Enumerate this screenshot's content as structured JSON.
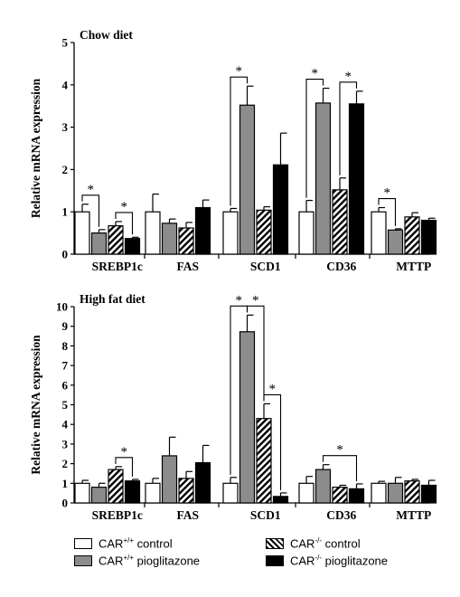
{
  "chart_data": [
    {
      "type": "bar",
      "title": "Chow diet",
      "ylabel": "Relative mRNA expression",
      "ylim": [
        0,
        5
      ],
      "yticks": [
        0,
        1,
        2,
        3,
        4,
        5
      ],
      "categories": [
        "SREBP1c",
        "FAS",
        "SCD1",
        "CD36",
        "MTTP"
      ],
      "series": [
        {
          "key": "car_pp_control",
          "values": [
            1.0,
            1.0,
            1.0,
            1.0,
            1.0
          ],
          "errors": [
            0.18,
            0.42,
            0.08,
            0.27,
            0.1
          ]
        },
        {
          "key": "car_pp_pio",
          "values": [
            0.5,
            0.73,
            3.52,
            3.57,
            0.57
          ],
          "errors": [
            0.08,
            0.1,
            0.45,
            0.35,
            0.03
          ]
        },
        {
          "key": "car_mm_control",
          "values": [
            0.67,
            0.62,
            1.04,
            1.52,
            0.88
          ],
          "errors": [
            0.1,
            0.13,
            0.08,
            0.28,
            0.1
          ]
        },
        {
          "key": "car_mm_pio",
          "values": [
            0.37,
            1.1,
            2.11,
            3.55,
            0.8
          ],
          "errors": [
            0.03,
            0.18,
            0.75,
            0.3,
            0.05
          ]
        }
      ],
      "significance": [
        {
          "category": 0,
          "from": 0,
          "to": 1,
          "label": "*"
        },
        {
          "category": 0,
          "from": 2,
          "to": 3,
          "label": "*"
        },
        {
          "category": 2,
          "from": 0,
          "to": 1,
          "label": "*"
        },
        {
          "category": 3,
          "from": 0,
          "to": 1,
          "label": "*"
        },
        {
          "category": 3,
          "from": 2,
          "to": 3,
          "label": "*"
        },
        {
          "category": 4,
          "from": 0,
          "to": 1,
          "label": "*"
        }
      ]
    },
    {
      "type": "bar",
      "title": "High fat diet",
      "ylabel": "Relative mRNA expression",
      "ylim": [
        0,
        10
      ],
      "yticks": [
        0,
        1,
        2,
        3,
        4,
        5,
        6,
        7,
        8,
        9,
        10
      ],
      "categories": [
        "SREBP1c",
        "FAS",
        "SCD1",
        "CD36",
        "MTTP"
      ],
      "series": [
        {
          "key": "car_pp_control",
          "values": [
            1.0,
            1.0,
            1.0,
            1.0,
            1.0
          ],
          "errors": [
            0.15,
            0.25,
            0.3,
            0.35,
            0.1
          ]
        },
        {
          "key": "car_pp_pio",
          "values": [
            0.8,
            2.4,
            8.72,
            1.7,
            1.0
          ],
          "errors": [
            0.2,
            0.95,
            0.85,
            0.25,
            0.3
          ]
        },
        {
          "key": "car_mm_control",
          "values": [
            1.7,
            1.25,
            4.3,
            0.8,
            1.12
          ],
          "errors": [
            0.15,
            0.35,
            0.75,
            0.1,
            0.08
          ]
        },
        {
          "key": "car_mm_pio",
          "values": [
            1.12,
            2.05,
            0.33,
            0.72,
            0.9
          ],
          "errors": [
            0.08,
            0.88,
            0.18,
            0.25,
            0.25
          ]
        }
      ],
      "significance": [
        {
          "category": 0,
          "from": 2,
          "to": 3,
          "label": "*"
        },
        {
          "category": 2,
          "from": 0,
          "to": 1,
          "label": "*"
        },
        {
          "category": 2,
          "from": 1,
          "to": 2,
          "label": "*"
        },
        {
          "category": 2,
          "from": 2,
          "to": 3,
          "label": "*"
        },
        {
          "category": 3,
          "from": 1,
          "to": 3,
          "label": "*"
        }
      ]
    }
  ],
  "legend": {
    "items": [
      {
        "key": "car_pp_control",
        "base": "CAR",
        "sup": "+/+",
        "suffix": " control",
        "fill": "#ffffff"
      },
      {
        "key": "car_pp_pio",
        "base": "CAR",
        "sup": "+/+",
        "suffix": " pioglitazone",
        "fill": "#8c8c8c"
      },
      {
        "key": "car_mm_control",
        "base": "CAR",
        "sup": "-/-",
        "suffix": " control",
        "fill": "hatch"
      },
      {
        "key": "car_mm_pio",
        "base": "CAR",
        "sup": "-/-",
        "suffix": " pioglitazone",
        "fill": "#000000"
      }
    ]
  },
  "colors": {
    "car_pp_control": "#ffffff",
    "car_pp_pio": "#8c8c8c",
    "car_mm_control": "hatch",
    "car_mm_pio": "#000000"
  }
}
